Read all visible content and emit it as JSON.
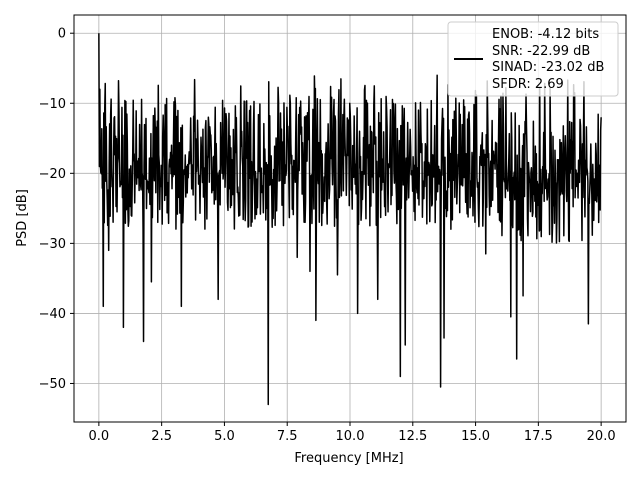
{
  "chart_data": {
    "type": "line",
    "title": "",
    "xlabel": "Frequency [MHz]",
    "ylabel": "PSD [dB]",
    "xlim": [
      -0.99,
      20.99
    ],
    "ylim": [
      -55.5,
      2.6
    ],
    "x_ticks": [
      0.0,
      2.5,
      5.0,
      7.5,
      10.0,
      12.5,
      15.0,
      17.5,
      20.0
    ],
    "x_tick_labels": [
      "0.0",
      "2.5",
      "5.0",
      "7.5",
      "10.0",
      "12.5",
      "15.0",
      "17.5",
      "20.0"
    ],
    "y_ticks": [
      0,
      -10,
      -20,
      -30,
      -40,
      -50
    ],
    "y_tick_labels": [
      "0",
      "−10",
      "−20",
      "−30",
      "−40",
      "−50"
    ],
    "grid": true,
    "legend_position": "top-right",
    "legend_entries": [
      "ENOB: -4.12 bits",
      "SNR: -22.99 dB",
      "SINAD: -23.02 dB",
      "SFDR: 2.69"
    ],
    "line_color": "#000000",
    "series": [
      {
        "name": "ENOB: -4.12 bits",
        "x_start": 0.0,
        "x_end": 20.0,
        "num_points": 1024,
        "peak": [
          0.0,
          0.0
        ],
        "notable_points": [
          [
            0.0,
            0.0
          ],
          [
            0.03,
            -8.0
          ],
          [
            0.17,
            -39.0
          ],
          [
            0.4,
            -31.0
          ],
          [
            0.97,
            -42.0
          ],
          [
            1.77,
            -44.0
          ],
          [
            2.1,
            -35.5
          ],
          [
            3.28,
            -39.0
          ],
          [
            4.75,
            -38.0
          ],
          [
            6.74,
            -53.0
          ],
          [
            7.9,
            -32.0
          ],
          [
            8.4,
            -34.0
          ],
          [
            8.65,
            -41.0
          ],
          [
            9.5,
            -34.5
          ],
          [
            10.3,
            -40.0
          ],
          [
            11.1,
            -38.0
          ],
          [
            12.0,
            -49.0
          ],
          [
            12.2,
            -44.5
          ],
          [
            13.6,
            -50.5
          ],
          [
            13.75,
            -43.5
          ],
          [
            15.4,
            -31.5
          ],
          [
            16.4,
            -40.5
          ],
          [
            16.63,
            -46.5
          ],
          [
            16.9,
            -37.5
          ],
          [
            19.5,
            -41.5
          ],
          [
            20.0,
            -12.0
          ]
        ]
      }
    ]
  }
}
